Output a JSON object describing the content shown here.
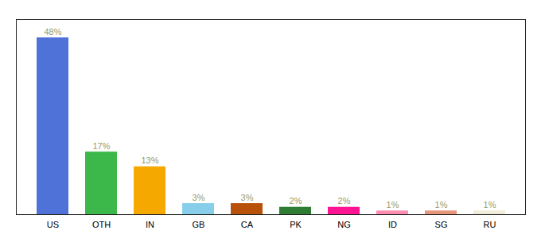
{
  "chart_data": {
    "type": "bar",
    "categories": [
      "US",
      "OTH",
      "IN",
      "GB",
      "CA",
      "PK",
      "NG",
      "ID",
      "SG",
      "RU"
    ],
    "values": [
      48,
      17,
      13,
      3,
      3,
      2,
      2,
      1,
      1,
      1
    ],
    "value_labels": [
      "48%",
      "17%",
      "13%",
      "3%",
      "3%",
      "2%",
      "2%",
      "1%",
      "1%",
      "1%"
    ],
    "colors": [
      "#4F72D9",
      "#3CB84A",
      "#F5A800",
      "#87CEEB",
      "#B8520A",
      "#2E7D32",
      "#FF1493",
      "#FF8DB0",
      "#E8957A",
      "#F0EDD8"
    ],
    "ylim": [
      0,
      53
    ],
    "data_labels": true,
    "tick_labels": "x",
    "grid": false
  }
}
